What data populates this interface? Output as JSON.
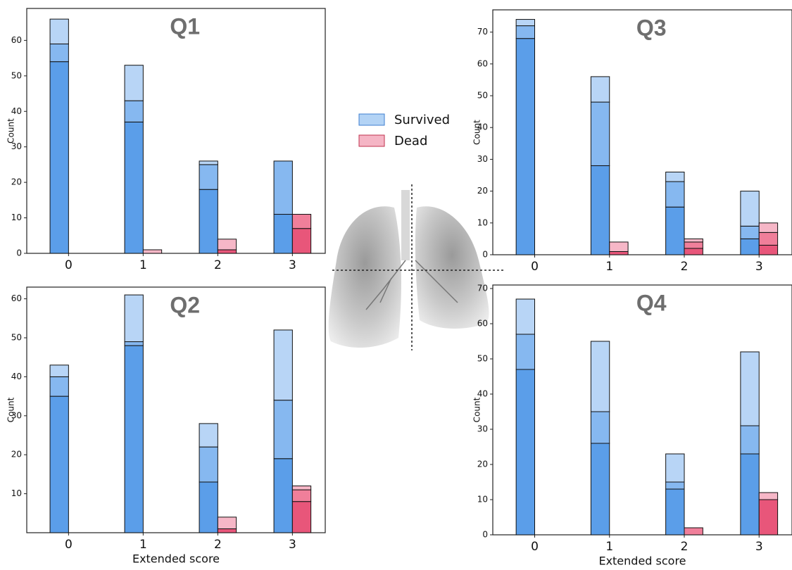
{
  "legend": {
    "items": [
      {
        "name": "Survived",
        "color": "#b3d3f5",
        "edge": "#3f7fd0"
      },
      {
        "name": "Dead",
        "color": "#f5b5c5",
        "edge": "#c0334f"
      }
    ]
  },
  "chart_data": [
    {
      "type": "bar",
      "title": "Q1",
      "y_label": "Count",
      "categories": [
        "0",
        "1",
        "2",
        "3"
      ],
      "ylim": [
        0,
        69
      ],
      "yticks": [
        0,
        10,
        20,
        30,
        40,
        50,
        60
      ],
      "series": [
        {
          "colors": [
            "#5b9ee9",
            "#86b8f0",
            "#b8d5f6"
          ],
          "values": [
            [
              54,
              5,
              7
            ],
            [
              37,
              6,
              10
            ],
            [
              18,
              7,
              1
            ],
            [
              11,
              15,
              0
            ]
          ]
        },
        {
          "colors": [
            "#e8567a",
            "#f07f9a",
            "#f6b7c7"
          ],
          "values": [
            [
              0,
              0,
              0
            ],
            [
              0,
              0,
              1
            ],
            [
              1,
              0,
              3
            ],
            [
              7,
              4,
              0
            ]
          ]
        }
      ]
    },
    {
      "type": "bar",
      "title": "Q2",
      "y_label": "Count",
      "x_label": "Extended score",
      "categories": [
        "0",
        "1",
        "2",
        "3"
      ],
      "ylim": [
        0,
        63
      ],
      "yticks": [
        10,
        20,
        30,
        40,
        50,
        60
      ],
      "series": [
        {
          "colors": [
            "#5b9ee9",
            "#86b8f0",
            "#b8d5f6"
          ],
          "values": [
            [
              35,
              5,
              3
            ],
            [
              48,
              1,
              12
            ],
            [
              13,
              9,
              6
            ],
            [
              19,
              15,
              18
            ]
          ]
        },
        {
          "colors": [
            "#e8567a",
            "#f07f9a",
            "#f6b7c7"
          ],
          "values": [
            [
              0,
              0,
              0
            ],
            [
              0,
              0,
              0
            ],
            [
              1,
              0,
              3
            ],
            [
              8,
              3,
              1
            ]
          ]
        }
      ]
    },
    {
      "type": "bar",
      "title": "Q3",
      "y_label": "Count",
      "categories": [
        "0",
        "1",
        "2",
        "3"
      ],
      "ylim": [
        0,
        77
      ],
      "yticks": [
        0,
        10,
        20,
        30,
        40,
        50,
        60,
        70
      ],
      "series": [
        {
          "colors": [
            "#5b9ee9",
            "#86b8f0",
            "#b8d5f6"
          ],
          "values": [
            [
              68,
              4,
              2
            ],
            [
              28,
              20,
              8
            ],
            [
              15,
              8,
              3
            ],
            [
              5,
              4,
              11
            ]
          ]
        },
        {
          "colors": [
            "#e8567a",
            "#f07f9a",
            "#f6b7c7"
          ],
          "values": [
            [
              0,
              0,
              0
            ],
            [
              1,
              0,
              3
            ],
            [
              2,
              2,
              1
            ],
            [
              3,
              4,
              3
            ]
          ]
        }
      ]
    },
    {
      "type": "bar",
      "title": "Q4",
      "y_label": "Count",
      "x_label": "Extended score",
      "categories": [
        "0",
        "1",
        "2",
        "3"
      ],
      "ylim": [
        0,
        71
      ],
      "yticks": [
        0,
        10,
        20,
        30,
        40,
        50,
        60,
        70
      ],
      "series": [
        {
          "colors": [
            "#5b9ee9",
            "#86b8f0",
            "#b8d5f6"
          ],
          "values": [
            [
              47,
              10,
              10
            ],
            [
              26,
              9,
              20
            ],
            [
              13,
              2,
              8
            ],
            [
              23,
              8,
              21
            ]
          ]
        },
        {
          "colors": [
            "#e8567a",
            "#f07f9a",
            "#f6b7c7"
          ],
          "values": [
            [
              0,
              0,
              0
            ],
            [
              0,
              0,
              0
            ],
            [
              0,
              2,
              0
            ],
            [
              10,
              0,
              2
            ]
          ]
        }
      ]
    }
  ]
}
